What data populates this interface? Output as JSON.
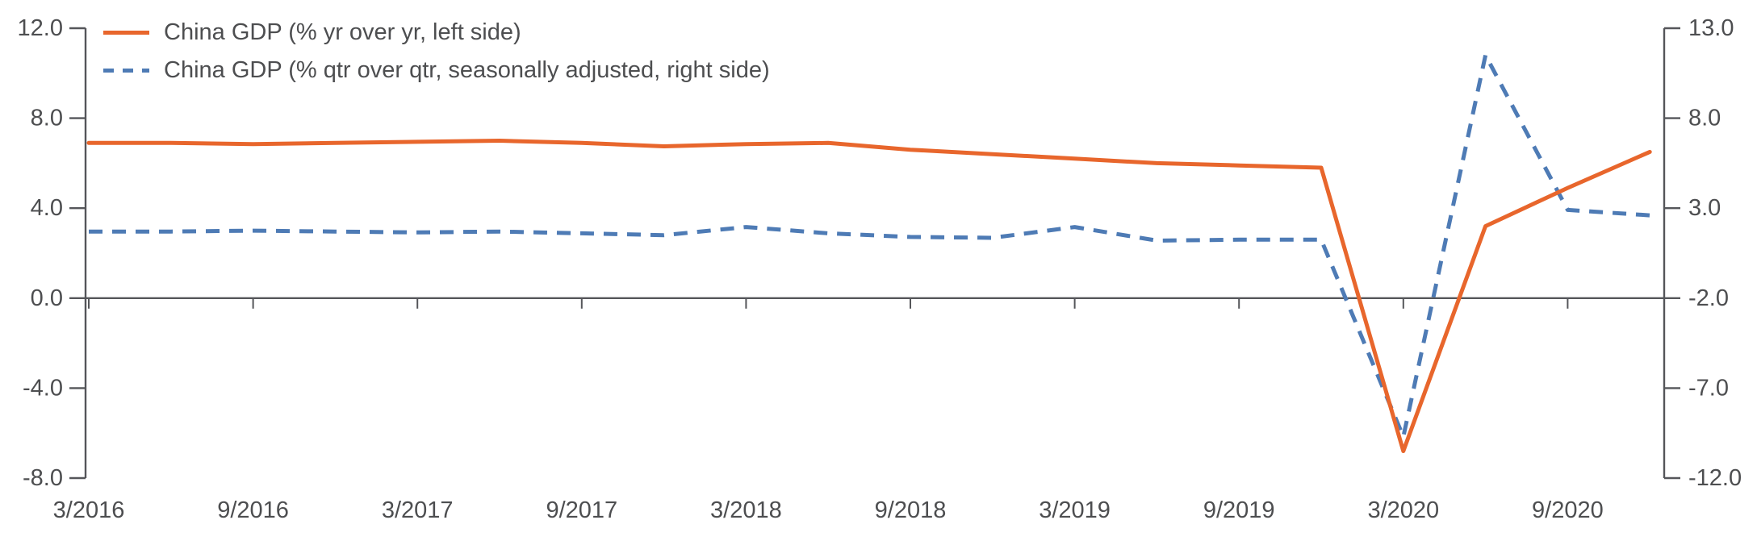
{
  "chart_data": {
    "type": "line",
    "title": "",
    "categories": [
      "3/2016",
      "6/2016",
      "9/2016",
      "12/2016",
      "3/2017",
      "6/2017",
      "9/2017",
      "12/2017",
      "3/2018",
      "6/2018",
      "9/2018",
      "12/2018",
      "3/2019",
      "6/2019",
      "9/2019",
      "12/2019",
      "3/2020",
      "6/2020",
      "9/2020",
      "12/2020"
    ],
    "x_tick_labels": [
      "3/2016",
      "9/2016",
      "3/2017",
      "9/2017",
      "3/2018",
      "9/2018",
      "3/2019",
      "9/2019",
      "3/2020",
      "9/2020"
    ],
    "x_tick_every": 2,
    "series": [
      {
        "name": "China GDP (% yr over yr, left side)",
        "axis": "left",
        "line_style": "solid",
        "color": "#E8662C",
        "values": [
          6.9,
          6.9,
          6.85,
          6.9,
          6.95,
          7.0,
          6.9,
          6.75,
          6.85,
          6.9,
          6.6,
          6.4,
          6.2,
          6.0,
          5.9,
          5.8,
          -6.8,
          3.2,
          4.9,
          6.5
        ]
      },
      {
        "name": "China GDP (% qtr over qtr, seasonally adjusted, right side)",
        "axis": "right",
        "line_style": "dashed",
        "color": "#4E7BB5",
        "values": [
          1.7,
          1.7,
          1.75,
          1.7,
          1.65,
          1.7,
          1.6,
          1.5,
          1.95,
          1.6,
          1.4,
          1.35,
          1.95,
          1.2,
          1.25,
          1.25,
          -9.7,
          11.5,
          2.9,
          2.6
        ]
      }
    ],
    "left_axis": {
      "min": -8,
      "max": 12,
      "tick_values": [
        12,
        8,
        4,
        0,
        -4,
        -8
      ],
      "tick_labels": [
        "12.0",
        "8.0",
        "4.0",
        "0.0",
        "-4.0",
        "-8.0"
      ]
    },
    "right_axis": {
      "min": -12,
      "max": 13,
      "tick_values": [
        13,
        8,
        3,
        -2,
        -7,
        -12
      ],
      "tick_labels": [
        "13.0",
        "8.0",
        "3.0",
        "-2.0",
        "-7.0",
        "-12.0"
      ]
    },
    "zero_line": true,
    "grid": false,
    "legend_position": "top-left",
    "axis_color": "#55565A",
    "text_color": "#4D4E50"
  }
}
